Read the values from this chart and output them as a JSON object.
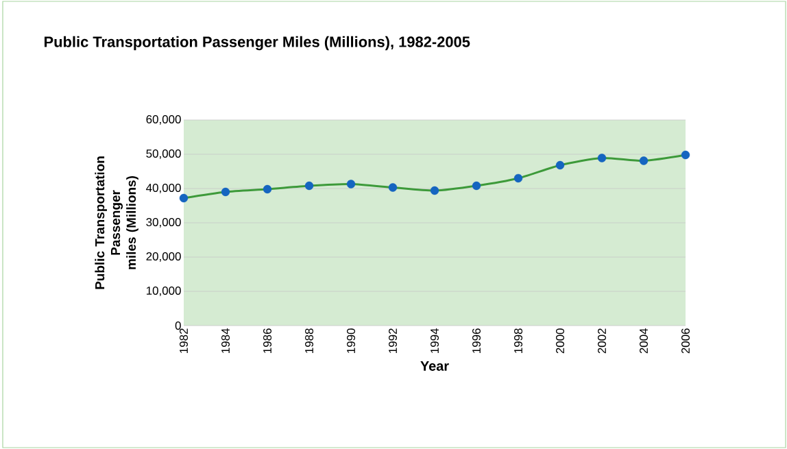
{
  "chart_data": {
    "type": "line",
    "title": "Public Transportation Passenger Miles (Millions), 1982-2005",
    "xlabel": "Year",
    "ylabel": "Public Transportation Passenger miles (Millions)",
    "x": [
      1982,
      1984,
      1986,
      1988,
      1990,
      1992,
      1994,
      1996,
      1998,
      2000,
      2002,
      2004,
      2006
    ],
    "values": [
      37200,
      39000,
      39800,
      40800,
      41300,
      40300,
      39400,
      40800,
      43000,
      46800,
      48900,
      48100,
      49800
    ],
    "color": "#3d9a3a",
    "colors": [
      "#1565c0",
      "#1565c0",
      "#1565c0",
      "#1565c0",
      "#1565c0",
      "#1565c0",
      "#1565c0",
      "#1565c0",
      "#1565c0",
      "#1565c0",
      "#1565c0",
      "#1565c0",
      "#1565c0"
    ],
    "marker": "circle",
    "grid": "y",
    "xlim": [
      1982,
      2006
    ],
    "ylim": [
      0,
      60000
    ],
    "xticks": [
      1982,
      1984,
      1986,
      1988,
      1990,
      1992,
      1994,
      1996,
      1998,
      2000,
      2002,
      2004,
      2006
    ],
    "yticks": [
      {
        "value": 0,
        "label": "0"
      },
      {
        "value": 10000,
        "label": "10,000"
      },
      {
        "value": 20000,
        "label": "20,000"
      },
      {
        "value": 30000,
        "label": "30,000"
      },
      {
        "value": 40000,
        "label": "40,000"
      },
      {
        "value": 50000,
        "label": "50,000"
      },
      {
        "value": 60000,
        "label": "60,000"
      }
    ]
  }
}
